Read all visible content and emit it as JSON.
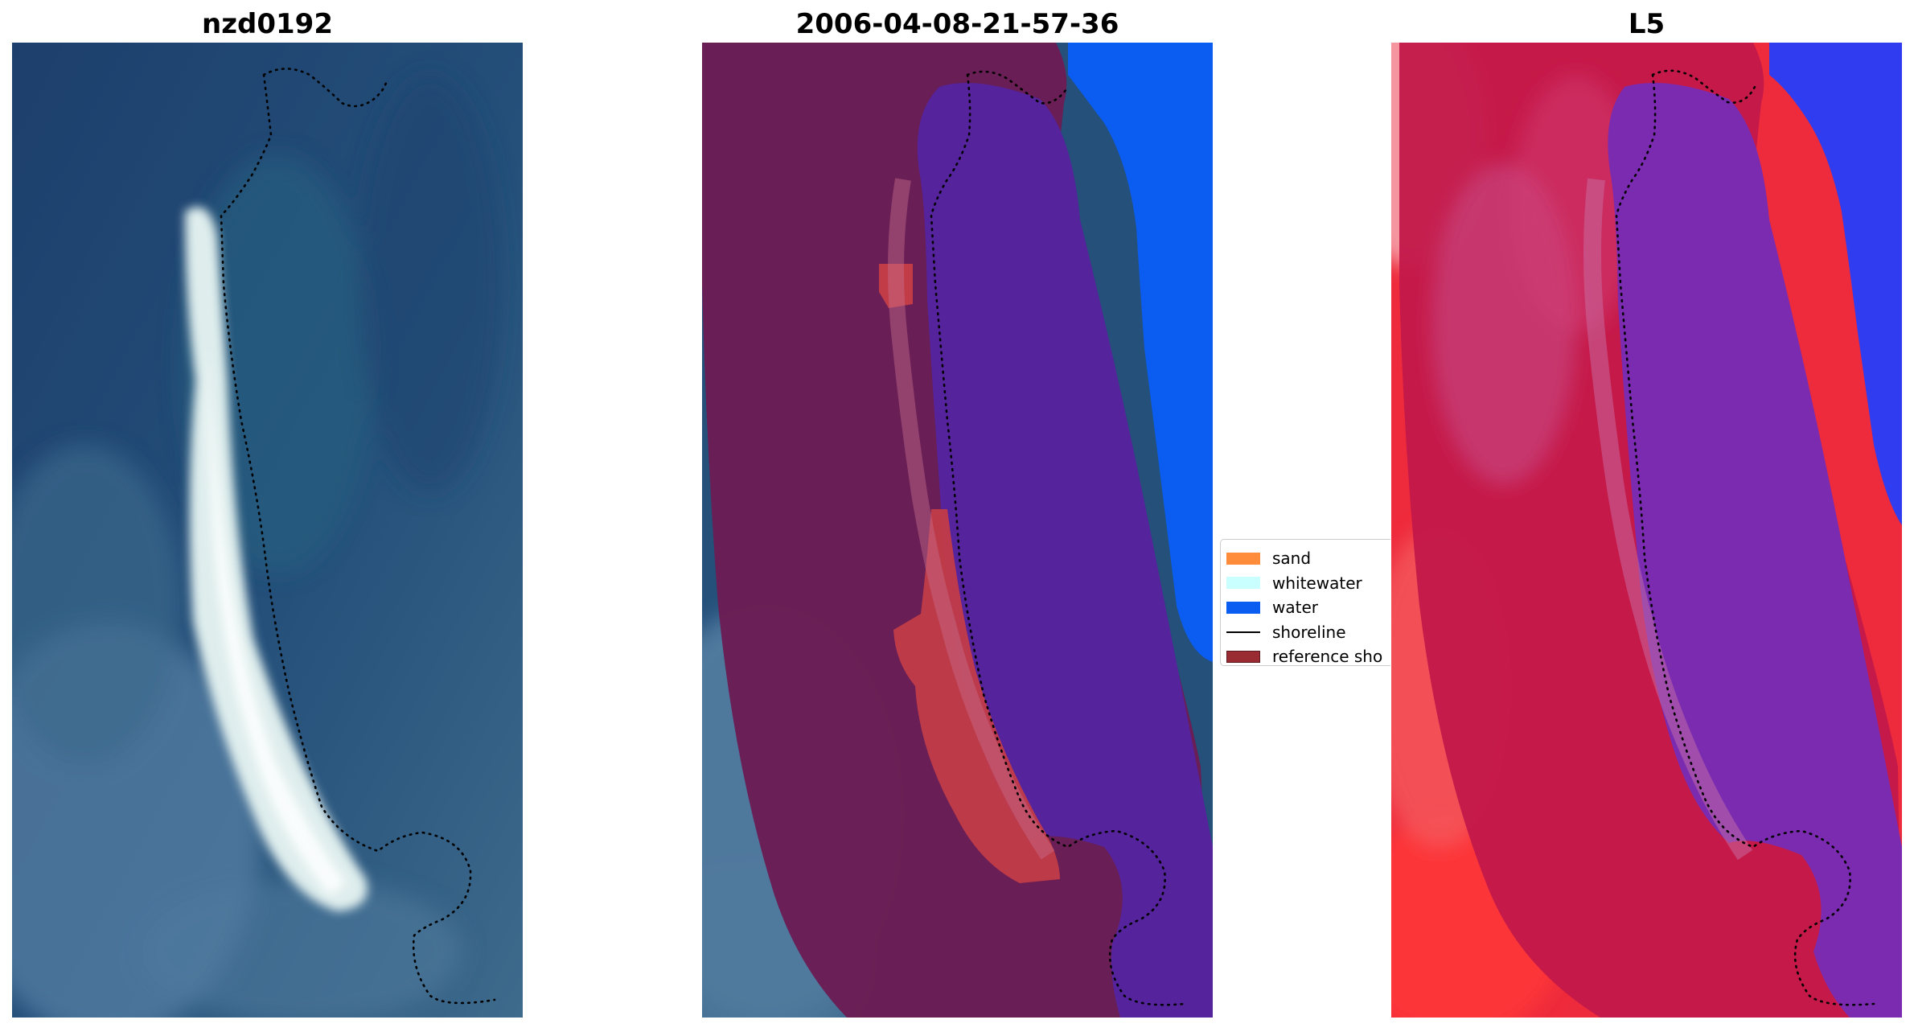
{
  "panels": [
    {
      "title": "nzd0192"
    },
    {
      "title": "2006-04-08-21-57-36"
    },
    {
      "title": "L5"
    }
  ],
  "legend": {
    "items": [
      {
        "label": "sand",
        "color": "#ff8c3a",
        "kind": "patch"
      },
      {
        "label": "whitewater",
        "color": "#c9ffff",
        "kind": "patch"
      },
      {
        "label": "water",
        "color": "#0b5cf0",
        "kind": "patch"
      },
      {
        "label": "shoreline",
        "color": "#000000",
        "kind": "line"
      },
      {
        "label": "reference sho",
        "color": "#9b2b33",
        "kind": "patch"
      }
    ]
  },
  "colors": {
    "rgb_water": "#1f4270",
    "rgb_shallow": "#2f5f86",
    "rgb_sand": "#e6f0ee",
    "classified_reference": "#6b1d54",
    "classified_water_mask": "#55239c",
    "classified_sand": "#c23c48",
    "index_land": "#ee2b3c",
    "index_reference": "#c2184a",
    "index_water": "#7a2bb0",
    "index_open_water": "#2f3cf0"
  },
  "icons": [
    "shoreline-dotted-line"
  ]
}
